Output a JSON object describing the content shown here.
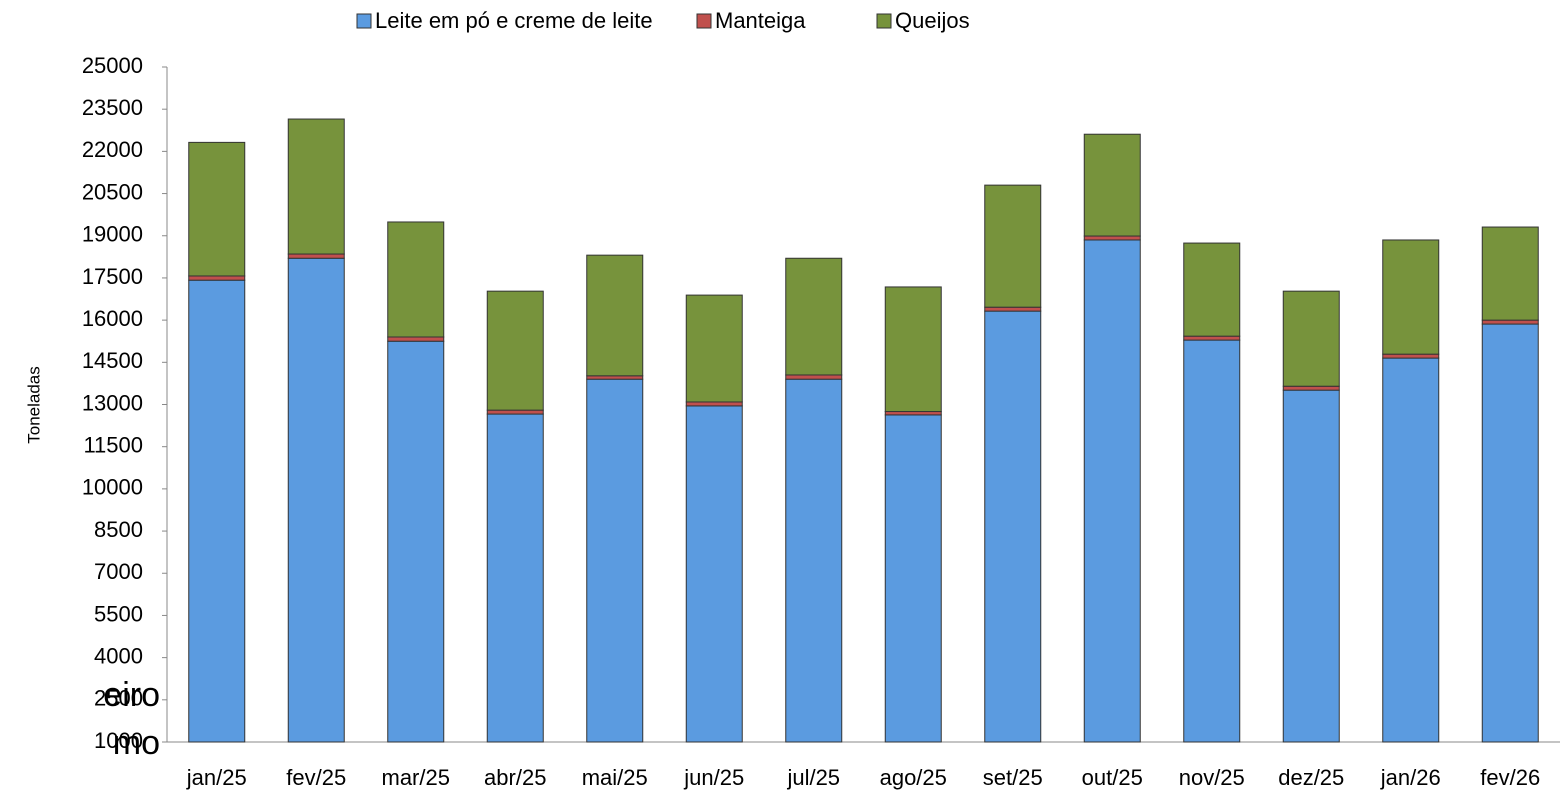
{
  "background_text": [
    "eiro",
    "mo"
  ],
  "chart_data": {
    "type": "stacked-bar",
    "y_label": "Toneladas",
    "categories": [
      "jan/25",
      "fev/25",
      "mar/25",
      "abr/25",
      "mai/25",
      "jun/25",
      "jul/25",
      "ago/25",
      "set/25",
      "out/25",
      "nov/25",
      "dez/25",
      "jan/26",
      "fev/26"
    ],
    "series": [
      {
        "name": "Leite em pó e creme de leite",
        "color": "#5b9be0",
        "values": [
          17420,
          18200,
          15250,
          12660,
          13900,
          12950,
          13900,
          12630,
          16320,
          18850,
          15290,
          13510,
          14650,
          15860
        ]
      },
      {
        "name": "Manteiga",
        "color": "#c0504d",
        "values": [
          150,
          150,
          150,
          140,
          120,
          140,
          150,
          120,
          140,
          140,
          140,
          140,
          140,
          140
        ]
      },
      {
        "name": "Queijos",
        "color": "#77933c",
        "values": [
          4750,
          4800,
          4090,
          4230,
          4290,
          3800,
          4150,
          4430,
          4340,
          3620,
          3310,
          3380,
          4060,
          3310
        ]
      }
    ],
    "ylim": [
      1000,
      25000
    ],
    "yticks": [
      1000,
      2500,
      4000,
      5500,
      7000,
      8500,
      10000,
      11500,
      13000,
      14500,
      16000,
      17500,
      19000,
      20500,
      22000,
      23500,
      25000
    ],
    "legend": "top"
  }
}
